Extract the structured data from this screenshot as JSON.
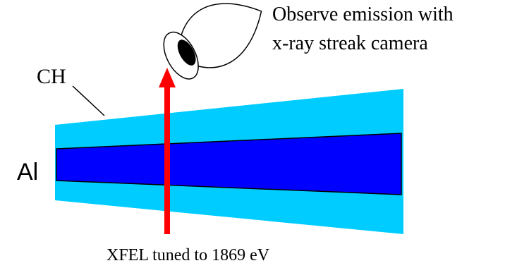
{
  "labels": {
    "ch": "CH",
    "al": "Al",
    "observe_line1": "Observe emission with",
    "observe_line2": "x-ray streak camera",
    "xfel": "XFEL tuned to 1869 eV"
  },
  "colors": {
    "ch_layer": "#00ccff",
    "al_layer": "#0000ff",
    "beam_arrow": "#ff0000",
    "outline": "#000000",
    "background": "#ffffff"
  },
  "icons": {
    "camera": "streak-camera-icon",
    "beam": "xfel-beam-arrow"
  }
}
